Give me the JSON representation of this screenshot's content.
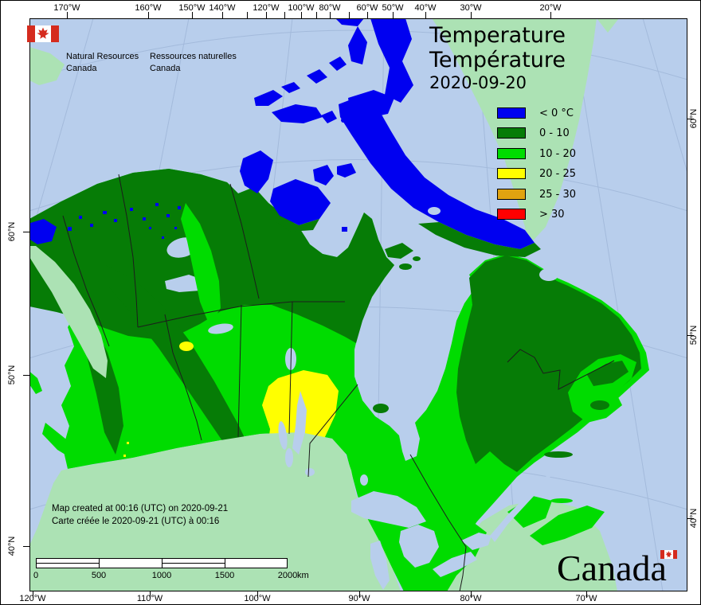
{
  "logo": {
    "icon": "canada-flag-icon",
    "en": [
      "Natural Resources",
      "Canada"
    ],
    "fr": [
      "Ressources naturelles",
      "Canada"
    ]
  },
  "title": {
    "en": "Temperature",
    "fr": "Température",
    "date": "2020-09-20"
  },
  "legend": {
    "items": [
      {
        "label": "< 0 °C",
        "color": "#0000F0"
      },
      {
        "label": "0 - 10",
        "color": "#067C06"
      },
      {
        "label": "10 - 20",
        "color": "#00DC00"
      },
      {
        "label": "20 - 25",
        "color": "#FFFF00"
      },
      {
        "label": "25 - 30",
        "color": "#E0A310"
      },
      {
        "label": "> 30",
        "color": "#FF0000"
      }
    ]
  },
  "annotations": {
    "created_en": "Map created at 00:16 (UTC) on 2020-09-21",
    "created_fr": "Carte créée le 2020-09-21 (UTC) à 00:16"
  },
  "scale_bar": {
    "labels": [
      "0",
      "500",
      "1000",
      "1500",
      "2000"
    ],
    "unit": "km"
  },
  "axes": {
    "top": [
      "170°W",
      "160°W",
      "150°W",
      "140°W",
      "120°W",
      "100°W",
      "80°W",
      "60°W",
      "50°W",
      "40°W",
      "30°W",
      "20°W"
    ],
    "bottom": [
      "120°W",
      "110°W",
      "100°W",
      "90°W",
      "80°W",
      "70°W"
    ],
    "left": [
      "60°N",
      "50°N",
      "40°N"
    ],
    "right": [
      "60°N",
      "50°N",
      "40°N"
    ]
  },
  "wordmark": {
    "text": "Canada",
    "flag_icon": "canada-flag-icon"
  },
  "colors": {
    "ocean": "#B8CEEC",
    "foreign_land": "#ACE2B4",
    "below0": "#0000F0",
    "t0_10": "#067C06",
    "t10_20": "#00DC00",
    "t20_25": "#FFFF00",
    "t25_30": "#E0A310",
    "t30p": "#FF0000",
    "graticule": "#A3BADB",
    "boundary": "#1C1C1C"
  }
}
